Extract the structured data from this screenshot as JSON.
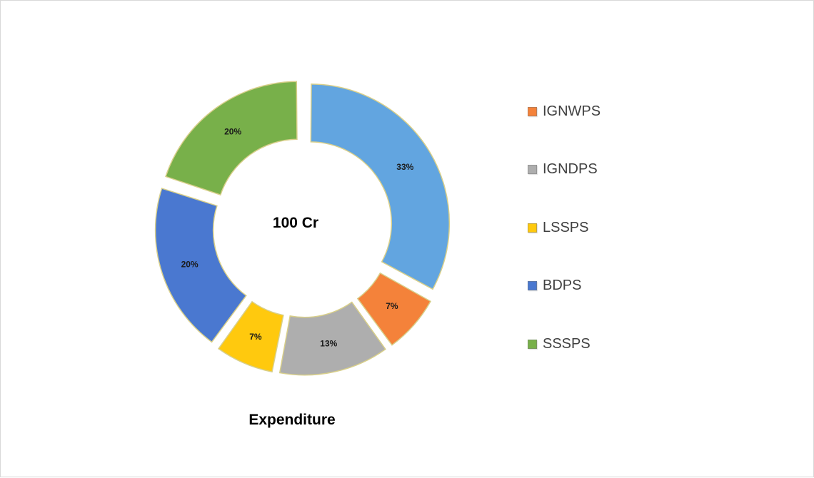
{
  "chart_data": {
    "type": "pie",
    "subtype": "doughnut",
    "title": "Expenditure",
    "center_label": "100 Cr",
    "legend_position": "right",
    "slices": [
      {
        "name": "IGNWPS",
        "value": 7,
        "label": "7%",
        "color": "#F4823A"
      },
      {
        "name": "IGNDPS",
        "value": 13,
        "label": "13%",
        "color": "#AEAEAE"
      },
      {
        "name": "LSSPS",
        "value": 7,
        "label": "7%",
        "color": "#FFC90E"
      },
      {
        "name": "BDPS",
        "value": 20,
        "label": "20%",
        "color": "#4A78D0"
      },
      {
        "name": "SSSPS",
        "value": 20,
        "label": "20%",
        "color": "#78B04A"
      },
      {
        "name": "",
        "value": 33,
        "label": "33%",
        "color": "#62A5E0"
      }
    ],
    "legend": [
      {
        "name": "IGNWPS",
        "color": "#F4823A"
      },
      {
        "name": "IGNDPS",
        "color": "#AEAEAE"
      },
      {
        "name": "LSSPS",
        "color": "#FFC90E"
      },
      {
        "name": "BDPS",
        "color": "#4A78D0"
      },
      {
        "name": "SSSPS",
        "color": "#78B04A"
      }
    ]
  }
}
